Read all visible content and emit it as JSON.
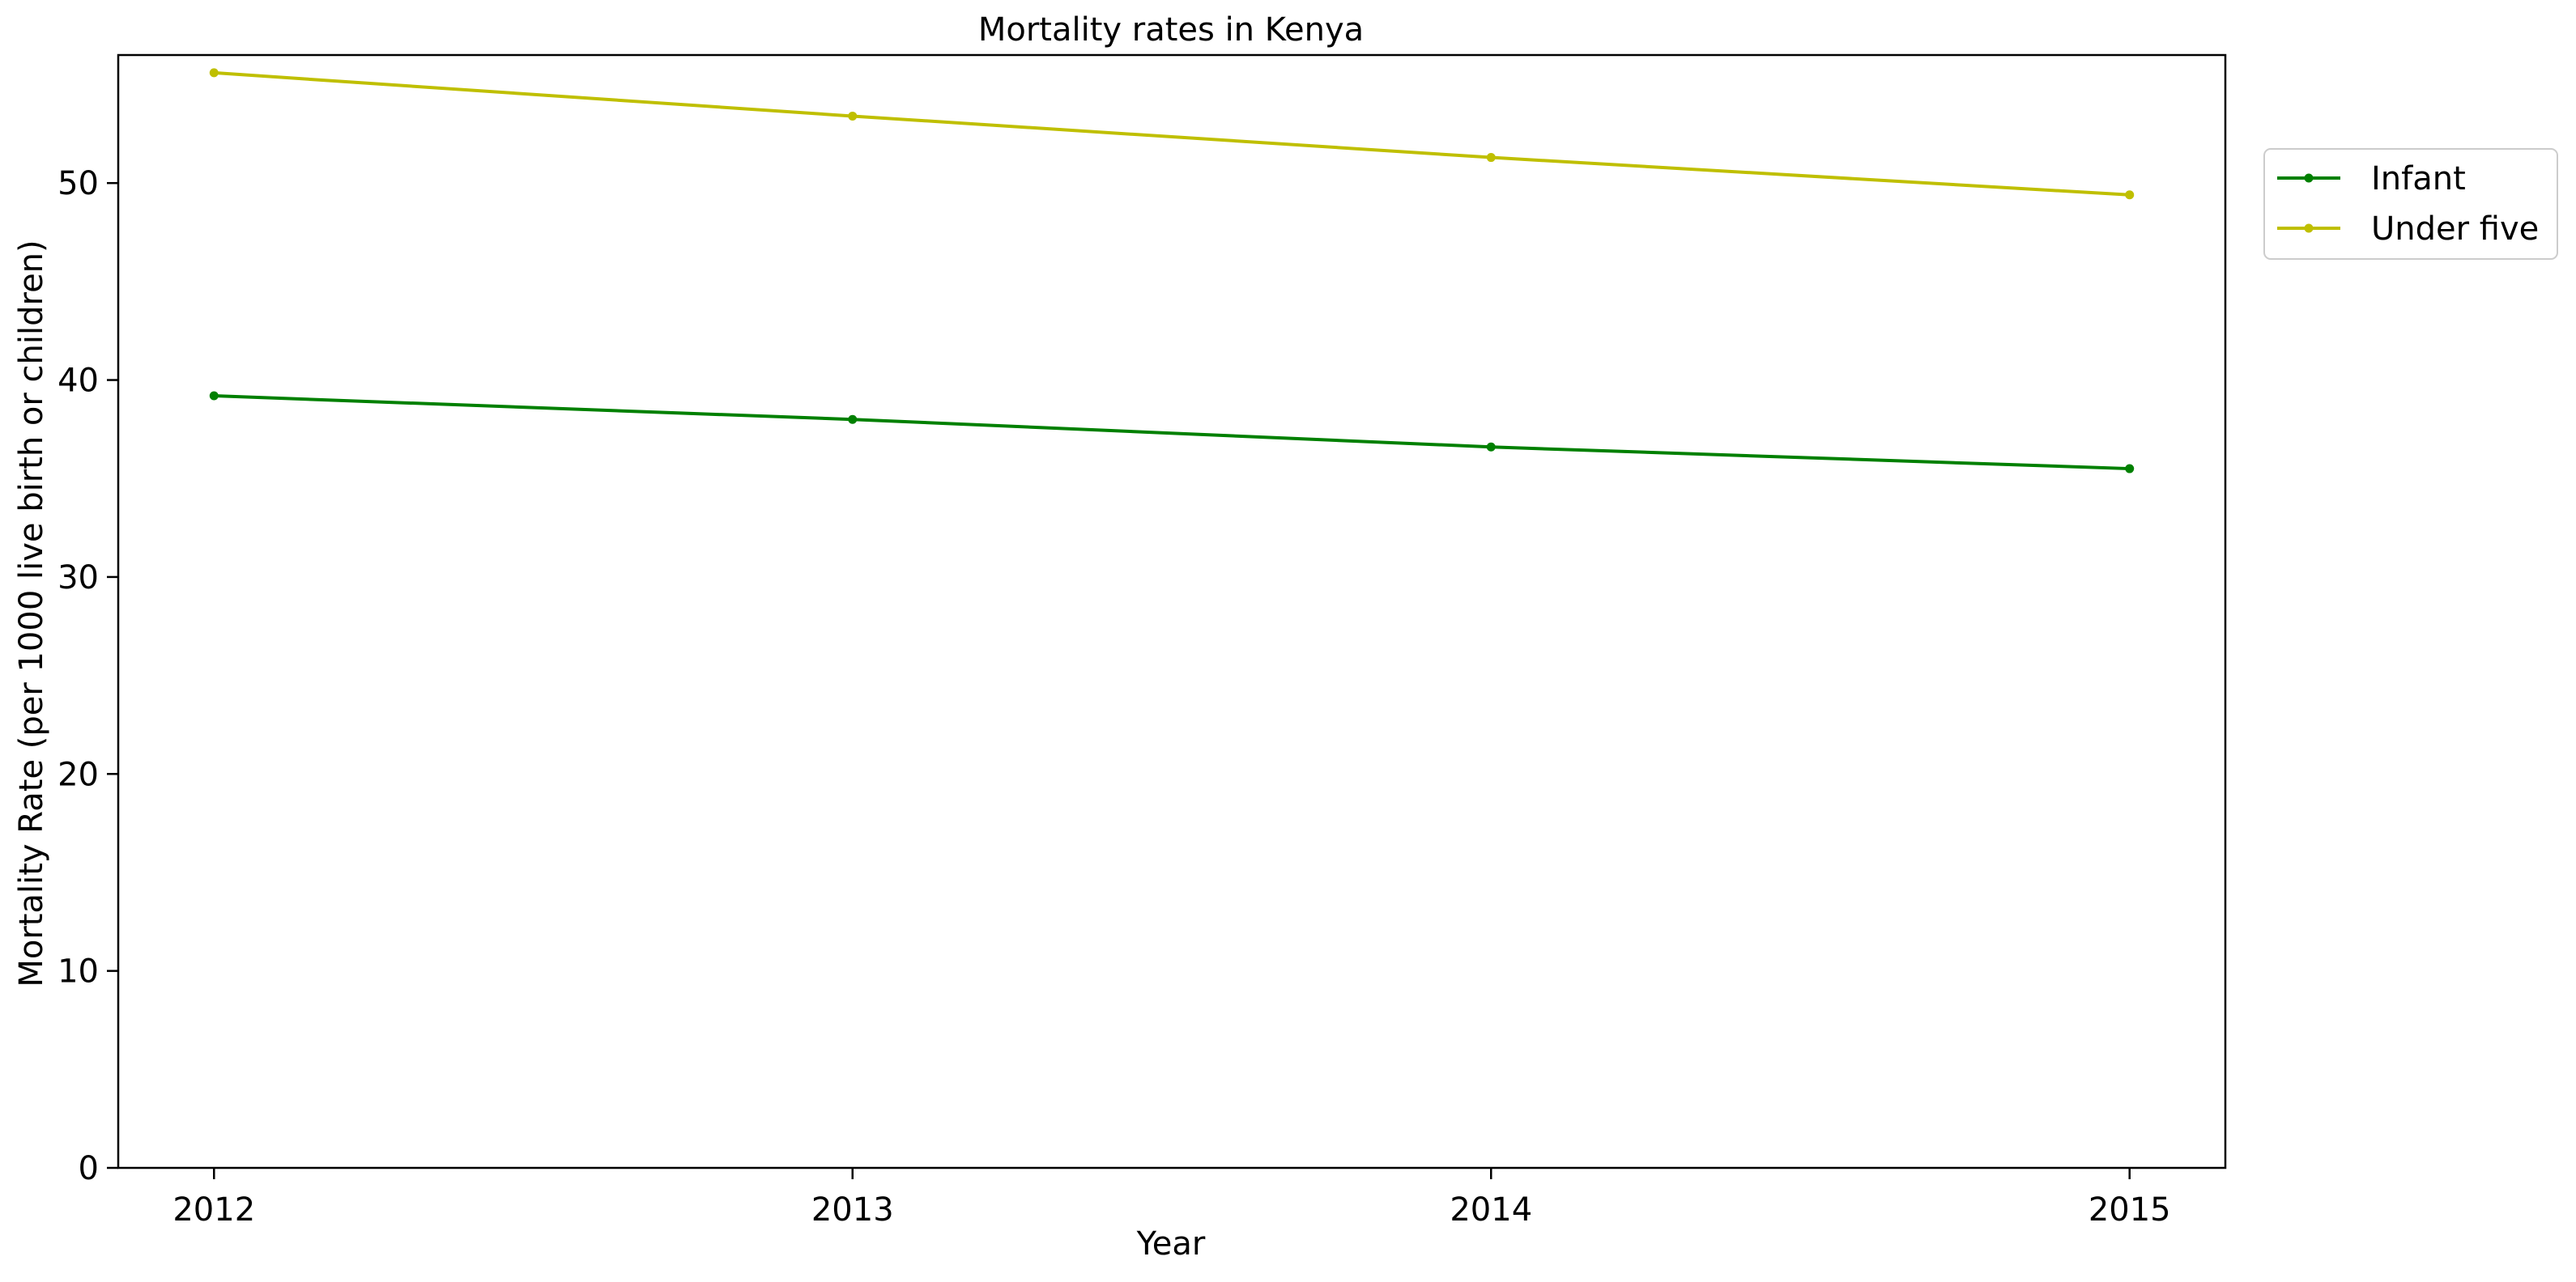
{
  "chart_data": {
    "type": "line",
    "title": "Mortality rates in Kenya",
    "xlabel": "Year",
    "ylabel": "Mortality Rate (per 1000 live birth or children)",
    "x": [
      2012,
      2013,
      2014,
      2015
    ],
    "xticks": [
      "2012",
      "2013",
      "2014",
      "2015"
    ],
    "yticks": [
      "0",
      "10",
      "20",
      "30",
      "40",
      "50"
    ],
    "xlim": [
      2011.85,
      2015.15
    ],
    "ylim": [
      0,
      56.5
    ],
    "grid": false,
    "legend_position": "outside-right-top",
    "series": [
      {
        "name": "Infant",
        "color": "#008000",
        "values": [
          39.2,
          38.0,
          36.6,
          35.5
        ]
      },
      {
        "name": "Under five",
        "color": "#bfbf00",
        "values": [
          55.6,
          53.4,
          51.3,
          49.4
        ]
      }
    ]
  }
}
